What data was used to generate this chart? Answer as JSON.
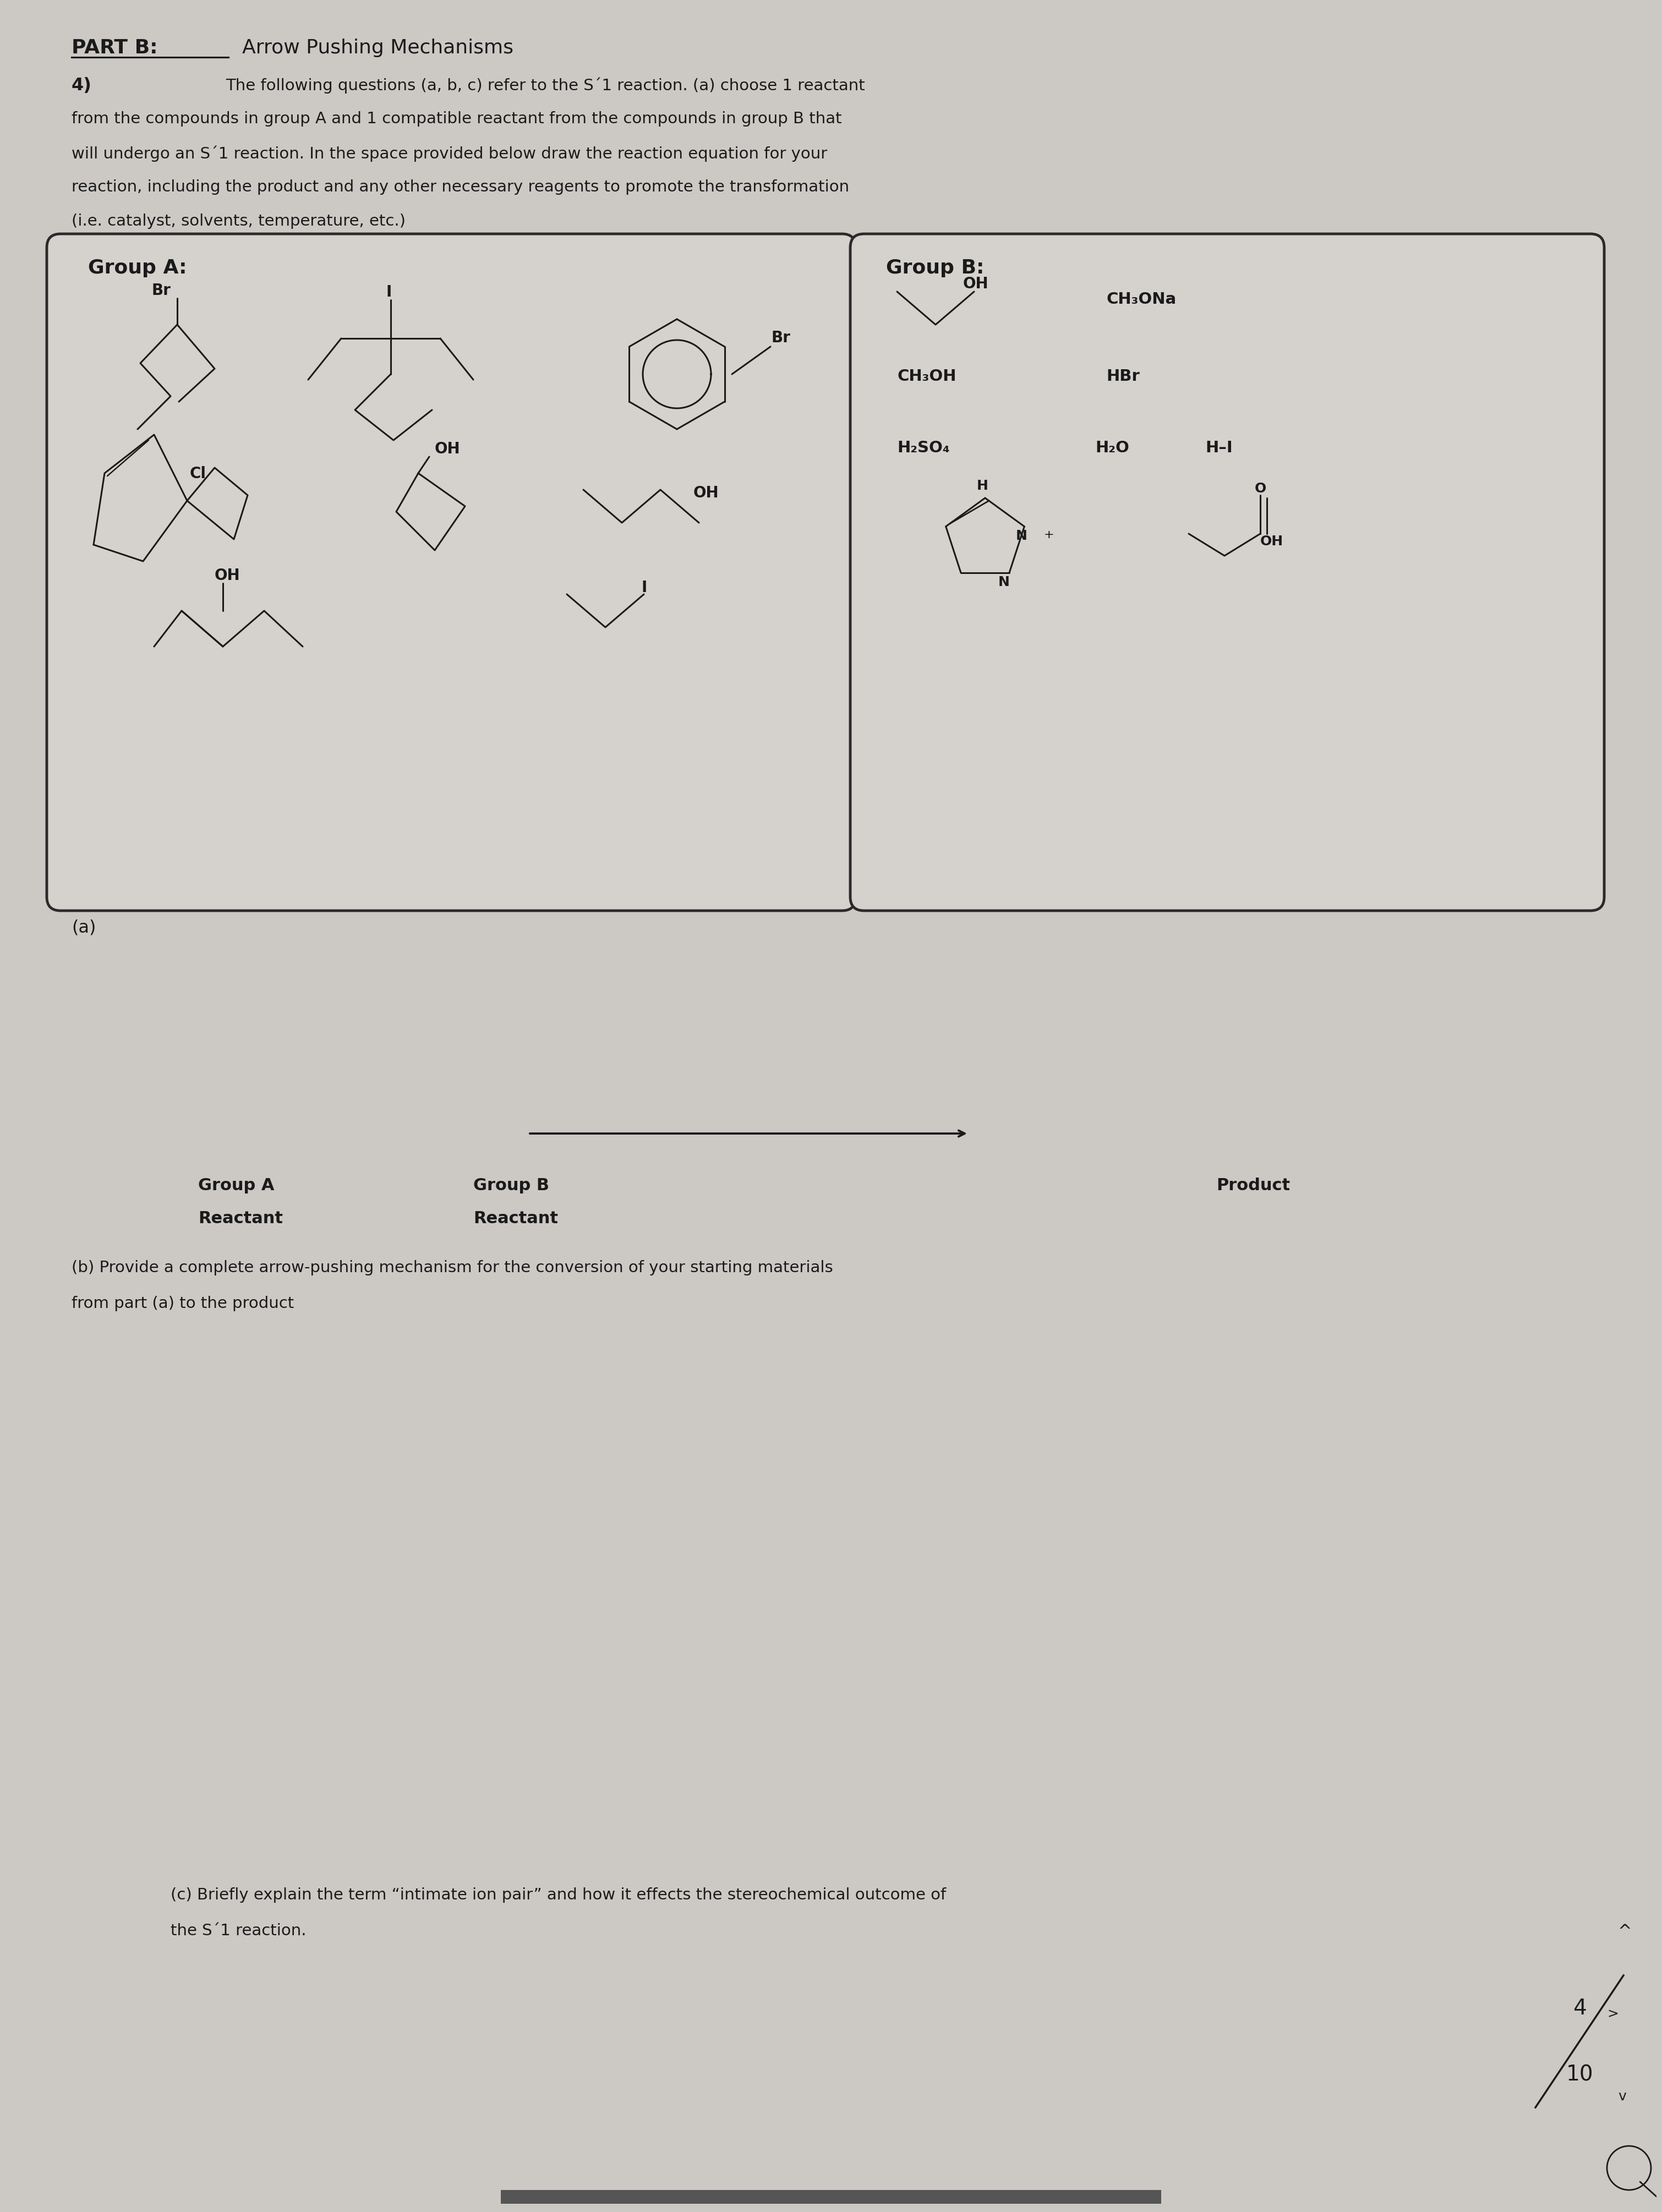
{
  "bg_color": "#ccc9c5",
  "box_color": "#d5d2ce",
  "text_color": "#1a1a1a",
  "part_b_header": "PART B:",
  "part_b_subtitle": "Arrow Pushing Mechanisms",
  "q_number": "4)",
  "q_line1": "The following questions (a, b, c) refer to the S´1 reaction. (a) choose 1 reactant",
  "q_line2": "from the compounds in group A and 1 compatible reactant from the compounds in group B that",
  "q_line3": "will undergo an S´1 reaction. In the space provided below draw the reaction equation for your",
  "q_line4": "reaction, including the product and any other necessary reagents to promote the transformation",
  "q_line5": "(i.e. catalyst, solvents, temperature, etc.)",
  "group_a": "Group A:",
  "group_b": "Group B:",
  "label_a": "(a)",
  "group_a_reactant": "Group A",
  "group_a_reactant2": "Reactant",
  "group_b_reactant": "Group B",
  "group_b_reactant2": "Reactant",
  "product": "Product",
  "part_b_q1": "(b) Provide a complete arrow-pushing mechanism for the conversion of your starting materials",
  "part_b_q2": "from part (a) to the product",
  "part_c_q1": "(c) Briefly explain the term “intimate ion pair” and how it effects the stereochemical outcome of",
  "part_c_q2": "the S´1 reaction.",
  "score_num": "4",
  "score_den": "10"
}
